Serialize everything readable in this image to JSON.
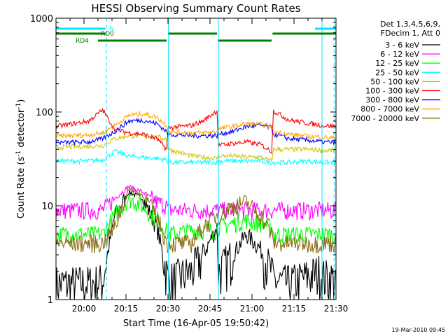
{
  "chart_data": {
    "type": "line",
    "title": "HESSI Observing Summary Count Rates",
    "xlabel": "Start Time (16-Apr-05 19:50:42)",
    "ylabel_main": "Count Rate (s",
    "ylabel_sup1": "-1",
    "ylabel_mid": " detector",
    "ylabel_sup2": "-1",
    "ylabel_end": ")",
    "x_ticks": [
      "20:00",
      "20:15",
      "20:30",
      "20:45",
      "21:00",
      "21:15",
      "21:30"
    ],
    "x_tick_minutes": [
      600,
      1500,
      2400,
      3300,
      4200,
      5100,
      6000
    ],
    "xlim_seconds_from_start": [
      0,
      6000
    ],
    "y_scale": "log",
    "ylim": [
      1,
      1000
    ],
    "y_ticks": [
      "1",
      "10",
      "100",
      "1000"
    ],
    "y_tick_values": [
      1,
      10,
      100,
      1000
    ],
    "legend_header": [
      "Det 1,3,4,5,6,9,",
      "FDecim 1, Att 0"
    ],
    "legend_position": "right",
    "series": [
      {
        "name": "3 - 6 keV",
        "color": "#000000",
        "x": [
          0,
          700,
          1000,
          1260,
          1560,
          1860,
          2160,
          2370,
          2410,
          2900,
          3150,
          3450,
          3480,
          3780,
          4080,
          4380,
          4620,
          4660,
          5000,
          5400,
          5650,
          5700,
          6150
        ],
        "y": [
          1.5,
          1.5,
          1.6,
          8,
          14,
          12,
          6,
          2,
          1.6,
          2,
          3,
          6,
          2,
          3,
          5,
          3.5,
          2,
          1.6,
          1.5,
          1.8,
          2,
          1.8,
          1.6
        ]
      },
      {
        "name": "6 - 12 keV",
        "color": "#ff00ff",
        "x": [
          0,
          700,
          1000,
          1260,
          1560,
          1860,
          2160,
          2370,
          2410,
          2900,
          3450,
          3480,
          4000,
          4620,
          4660,
          5200,
          5700,
          6150
        ],
        "y": [
          9,
          9,
          9,
          12,
          16,
          14,
          11,
          10,
          9,
          9,
          9,
          9,
          9,
          9,
          9,
          9,
          9,
          9
        ]
      },
      {
        "name": "12 - 25 keV",
        "color": "#00ff00",
        "x": [
          0,
          700,
          1000,
          1260,
          1560,
          1860,
          2160,
          2370,
          2410,
          2900,
          3150,
          3450,
          3480,
          3780,
          4080,
          4380,
          4620,
          4660,
          5000,
          5400,
          5700,
          6150
        ],
        "y": [
          5,
          5,
          5,
          8,
          12,
          10,
          7,
          5.5,
          5,
          5.5,
          5.5,
          5.5,
          6,
          6.5,
          7,
          6.5,
          6,
          5,
          5,
          5,
          5,
          5
        ]
      },
      {
        "name": "25 - 50 keV",
        "color": "#00ffff",
        "x": [
          0,
          700,
          1000,
          1260,
          1560,
          1860,
          2160,
          2370,
          2410,
          2900,
          3150,
          3450,
          3480,
          3780,
          4080,
          4380,
          4620,
          4660,
          5000,
          5400,
          5700,
          6150
        ],
        "y": [
          30,
          30,
          31,
          38,
          34,
          33,
          32,
          31,
          29,
          29,
          29,
          29,
          30,
          30,
          30,
          30,
          29,
          29,
          29,
          30,
          29,
          29
        ]
      },
      {
        "name": "50 - 100 keV",
        "color": "#d4c400",
        "x": [
          0,
          700,
          1000,
          1260,
          1560,
          1860,
          2160,
          2370,
          2410,
          2900,
          3150,
          3450,
          3480,
          3780,
          4080,
          4380,
          4620,
          4660,
          5000,
          5400,
          5700,
          6150
        ],
        "y": [
          42,
          43,
          44,
          52,
          56,
          55,
          54,
          52,
          40,
          34,
          33,
          32,
          34,
          34,
          33,
          33,
          30,
          40,
          40,
          40,
          39,
          39
        ]
      },
      {
        "name": "100 - 300 keV",
        "color": "#ff0000",
        "x": [
          0,
          700,
          1000,
          1265,
          1560,
          1860,
          2160,
          2370,
          2410,
          2900,
          3150,
          3450,
          3480,
          3780,
          4080,
          4380,
          4620,
          4660,
          5000,
          5400,
          5700,
          6150
        ],
        "y": [
          70,
          80,
          105,
          65,
          60,
          58,
          52,
          40,
          68,
          72,
          80,
          104,
          44,
          46,
          48,
          45,
          38,
          103,
          82,
          76,
          72,
          70
        ]
      },
      {
        "name": "300 - 800 keV",
        "color": "#0000ff",
        "x": [
          0,
          700,
          1000,
          1260,
          1560,
          1860,
          2160,
          2370,
          2410,
          2900,
          3150,
          3450,
          3480,
          3780,
          4080,
          4380,
          4620,
          4660,
          5000,
          5400,
          5700,
          6150
        ],
        "y": [
          47,
          48,
          52,
          62,
          80,
          82,
          75,
          62,
          58,
          56,
          56,
          56,
          58,
          62,
          70,
          72,
          68,
          58,
          52,
          50,
          48,
          47
        ]
      },
      {
        "name": "800 - 7000 keV",
        "color": "#ffa500",
        "x": [
          0,
          700,
          1000,
          1260,
          1560,
          1860,
          2160,
          2370,
          2410,
          2900,
          3150,
          3450,
          3480,
          3780,
          4080,
          4380,
          4620,
          4660,
          5000,
          5400,
          5700,
          6150
        ],
        "y": [
          55,
          57,
          60,
          72,
          92,
          96,
          88,
          72,
          62,
          60,
          60,
          62,
          66,
          70,
          75,
          74,
          70,
          62,
          58,
          55,
          54,
          52
        ]
      },
      {
        "name": "7000 - 20000 keV",
        "color": "#8b6914",
        "x": [
          0,
          700,
          1000,
          1260,
          1560,
          1860,
          2160,
          2370,
          2410,
          2900,
          3150,
          3450,
          3480,
          3780,
          4080,
          4380,
          4620,
          4660,
          5000,
          5400,
          5700,
          6150
        ],
        "y": [
          4,
          4,
          4,
          6,
          15,
          13,
          8,
          4,
          4,
          4,
          6,
          8,
          8,
          10,
          11,
          8,
          5,
          4,
          4,
          4,
          4,
          4
        ]
      }
    ],
    "annotations": {
      "labels": [
        {
          "text": "N",
          "color": "#00ffff"
        },
        {
          "text": "RD0",
          "color": "#008000"
        },
        {
          "text": "RD4",
          "color": "#008000"
        }
      ],
      "flag_N_cyan": [
        [
          0,
          1060
        ],
        [
          5550,
          6150
        ]
      ],
      "flag_RD0_green": [
        [
          0,
          1060
        ],
        [
          2410,
          3450
        ],
        [
          4640,
          6150
        ]
      ],
      "flag_RD4_green": [
        [
          900,
          2370
        ],
        [
          3480,
          4620
        ]
      ],
      "night_boundaries_cyan_solid": [
        0,
        2410,
        3480,
        5700
      ],
      "saa_boundaries_cyan_dashed": [
        1080,
        6150
      ]
    },
    "footer_timestamp": "19-Mar-2010 09:45"
  }
}
